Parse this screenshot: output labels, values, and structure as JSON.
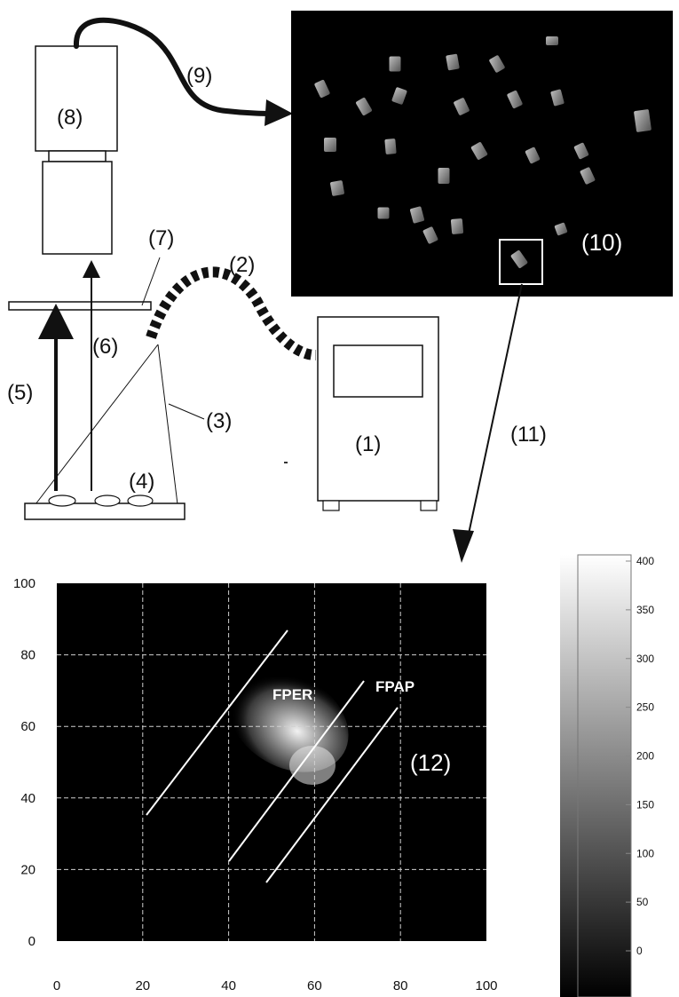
{
  "labels": {
    "light_source": "(1)",
    "fiber_cable": "(2)",
    "light_cone": "(3)",
    "samples": "(4)",
    "excitation_light": "(5)",
    "emission_light": "(6)",
    "filter": "(7)",
    "camera": "(8)",
    "data_cable": "(9)",
    "fluorescence_image": "(10)",
    "zoom_arrow": "(11)",
    "spectral_map": "(12)"
  },
  "spectral_plot": {
    "x_ticks": [
      "0",
      "20",
      "40",
      "60",
      "80",
      "100"
    ],
    "y_ticks": [
      "0",
      "20",
      "40",
      "60",
      "80",
      "100"
    ],
    "band_labels": [
      "FPER",
      "FPAP"
    ],
    "background": "#000000",
    "grid_color": "#cfcfcf"
  },
  "colorbar": {
    "ticks": [
      "0",
      "50",
      "100",
      "150",
      "200",
      "250",
      "300",
      "350",
      "400"
    ],
    "min": 0,
    "max": 400
  },
  "colors": {
    "image_background": "#000000",
    "line": "#111111"
  }
}
